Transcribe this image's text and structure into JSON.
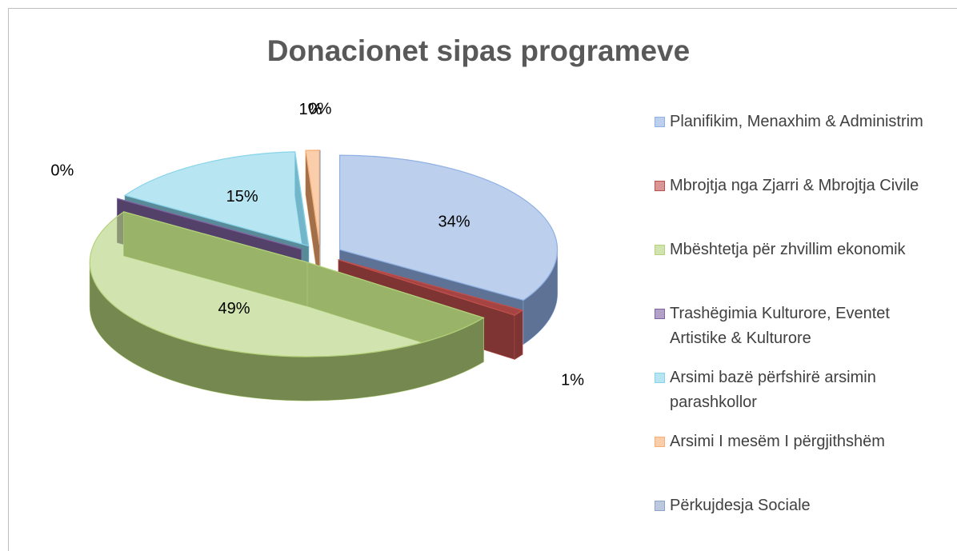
{
  "chart_data": {
    "type": "pie",
    "title": "Donacionet sipas programeve",
    "categories": [
      "Planifikim, Menaxhim & Administrim",
      "Mbrojtja nga Zjarri & Mbrojtja Civile",
      "Mbështetja për zhvillim ekonomik",
      "Trashëgimia Kulturore, Eventet Artistike & Kulturore",
      "Arsimi bazë përfshirë arsimin parashkollor",
      "Arsimi I mesëm I përgjithshëm",
      "Përkujdesja Sociale"
    ],
    "values": [
      34,
      1,
      49,
      0,
      15,
      1,
      0
    ],
    "value_labels": [
      "34%",
      "1%",
      "49%",
      "0%",
      "15%",
      "1%",
      "0%"
    ],
    "colors": [
      "#8fb0e3",
      "#c0504d",
      "#b3d27a",
      "#8064a2",
      "#87d4ea",
      "#f7ad73",
      "#8da3c8"
    ],
    "legend": "right"
  }
}
